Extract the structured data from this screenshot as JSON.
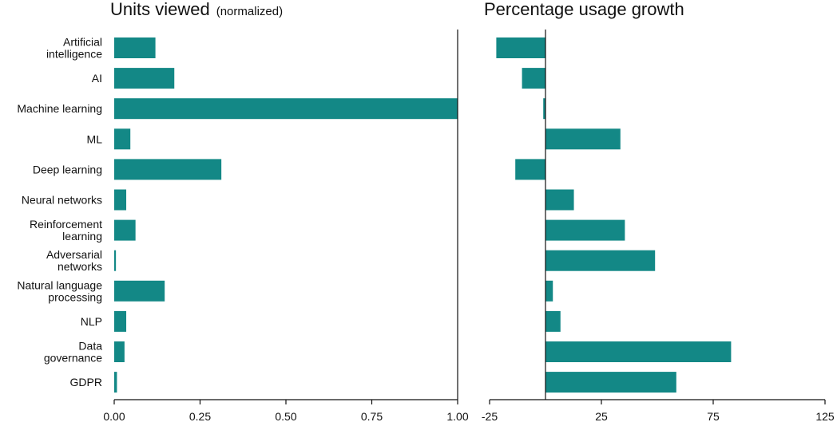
{
  "colors": {
    "bar": "#138886",
    "axis": "#111111"
  },
  "chart_data": [
    {
      "type": "bar",
      "orientation": "horizontal",
      "title": "Units viewed",
      "subtitle": "(normalized)",
      "categories": [
        "Artificial\nintelligence",
        "AI",
        "Machine learning",
        "ML",
        "Deep learning",
        "Neural networks",
        "Reinforcement\nlearning",
        "Adversarial\nnetworks",
        "Natural language\nprocessing",
        "NLP",
        "Data\ngovernance",
        "GDPR"
      ],
      "values": [
        0.12,
        0.175,
        1.0,
        0.047,
        0.312,
        0.035,
        0.062,
        0.005,
        0.147,
        0.035,
        0.03,
        0.008
      ],
      "xlim": [
        0,
        1.0
      ],
      "xticks": [
        0,
        0.25,
        0.5,
        0.75,
        1.0
      ],
      "xtick_labels": [
        "0.00",
        "0.25",
        "0.50",
        "0.75",
        "1.00"
      ],
      "grid": false
    },
    {
      "type": "bar",
      "orientation": "horizontal",
      "title": "Percentage usage growth",
      "categories": [
        "Artificial\nintelligence",
        "AI",
        "Machine learning",
        "ML",
        "Deep learning",
        "Neural networks",
        "Reinforcement\nlearning",
        "Adversarial\nnetworks",
        "Natural language\nprocessing",
        "NLP",
        "Data\ngovernance",
        "GDPR"
      ],
      "values": [
        -22,
        -10.5,
        -1,
        33.5,
        -13.5,
        12.7,
        35.5,
        49,
        3.3,
        6.7,
        83,
        58.5
      ],
      "xlim": [
        -25,
        125
      ],
      "xticks": [
        -25,
        25,
        75,
        125
      ],
      "xtick_labels": [
        "-25",
        "25",
        "75",
        "125"
      ],
      "grid": false
    }
  ]
}
